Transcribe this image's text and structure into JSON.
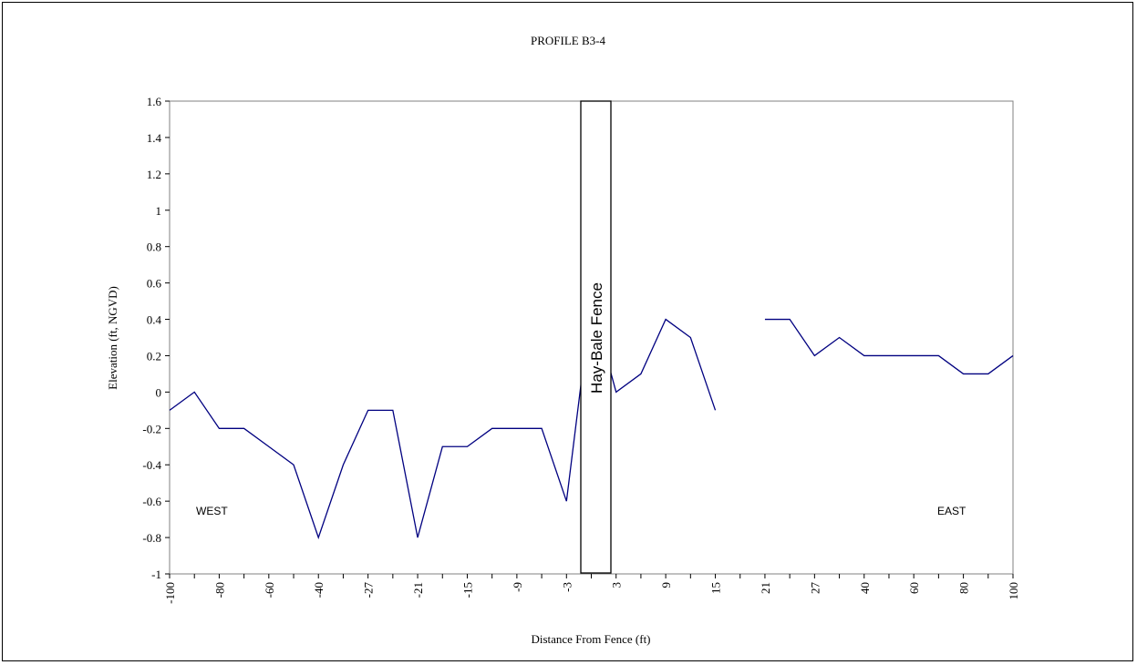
{
  "chart_data": {
    "type": "line",
    "title": "PROFILE B3-4",
    "xlabel": "Distance From Fence (ft)",
    "ylabel": "Elevation (ft, NGVD)",
    "ylim": [
      -1,
      1.6
    ],
    "y_ticks": [
      "1.6",
      "1.4",
      "1.2",
      "1",
      "0.8",
      "0.6",
      "0.4",
      "0.2",
      "0",
      "-0.2",
      "-0.4",
      "-0.6",
      "-0.8",
      "-1"
    ],
    "x_tick_labels": [
      "-100",
      "-80",
      "-60",
      "-40",
      "-27",
      "-21",
      "-15",
      "-9",
      "-3",
      "3",
      "9",
      "15",
      "21",
      "27",
      "40",
      "60",
      "80",
      "100"
    ],
    "categories": [
      "-100",
      "-90",
      "-80",
      "-70",
      "-60",
      "-50",
      "-40",
      "-30",
      "-27",
      "-24",
      "-21",
      "-18",
      "-15",
      "-12",
      "-9",
      "-6",
      "-3",
      "0",
      "3",
      "6",
      "9",
      "12",
      "15",
      "18",
      "21",
      "24",
      "27",
      "30",
      "40",
      "50",
      "60",
      "70",
      "80",
      "90",
      "100"
    ],
    "series": [
      {
        "values": [
          -0.1,
          0.0,
          -0.2,
          -0.2,
          -0.3,
          -0.4,
          -0.8,
          -0.4,
          -0.1,
          -0.1,
          -0.8,
          -0.3,
          -0.3,
          -0.2,
          -0.2,
          -0.2,
          -0.6,
          0.5,
          0.0,
          0.1,
          0.4,
          0.3,
          -0.1,
          null,
          0.4,
          0.4,
          0.2,
          0.3,
          0.2,
          0.2,
          0.2,
          0.2,
          0.1,
          0.1,
          0.2
        ],
        "color": "#000080"
      }
    ],
    "annotations": {
      "fence_label": "Hay-Bale Fence",
      "west_label": "WEST",
      "east_label": "EAST"
    },
    "grid": false,
    "legend": "none"
  }
}
